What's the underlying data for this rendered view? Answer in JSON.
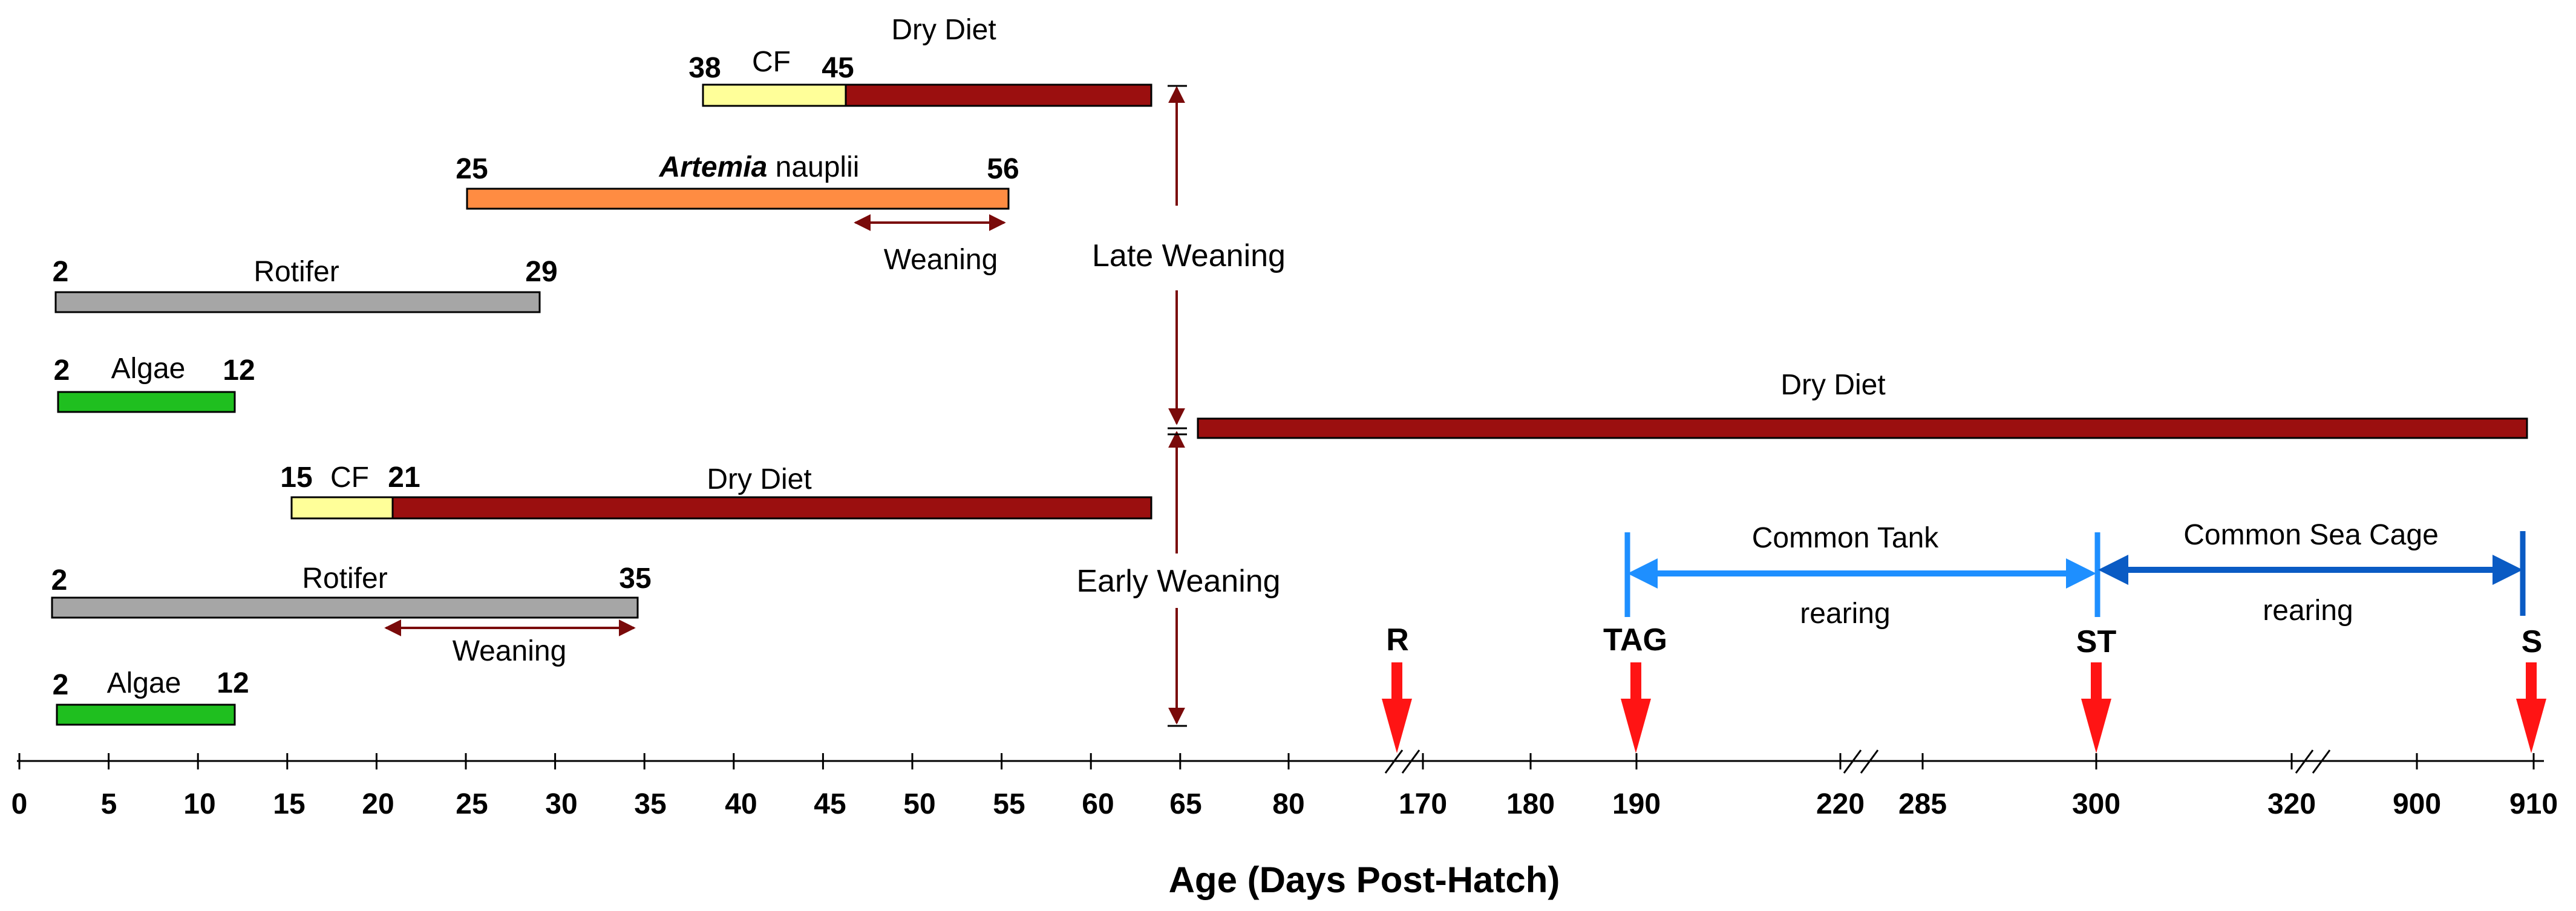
{
  "colors": {
    "algae": "#1fbf1f",
    "rotifer": "#a6a6a6",
    "cf": "#ffff99",
    "dry_diet": "#9b0f0f",
    "artemia": "#ff8c42",
    "weaning_arrow": "#7a0a0a",
    "common_tank": "#1e8fff",
    "common_sea_cage": "#0a5bc4",
    "event_marker": "#ff1414"
  },
  "late_weaning": {
    "label": "Late Weaning",
    "dry_diet": {
      "label": "Dry Diet"
    },
    "cf": {
      "label": "CF",
      "start_label": "38",
      "end_label": "45"
    },
    "artemia": {
      "label_italic": "Artemia",
      "label_rest": " nauplii",
      "start_label": "25",
      "end_label": "56"
    },
    "weaning": {
      "label": "Weaning"
    },
    "rotifer": {
      "label": "Rotifer",
      "start_label": "2",
      "end_label": "29"
    },
    "algae": {
      "label": "Algae",
      "start_label": "2",
      "end_label": "12"
    }
  },
  "early_weaning": {
    "label": "Early Weaning",
    "cf": {
      "label": "CF",
      "start_label": "15",
      "end_label": "21"
    },
    "dry_diet": {
      "label": "Dry Diet"
    },
    "rotifer": {
      "label": "Rotifer",
      "start_label": "2",
      "end_label": "35"
    },
    "weaning": {
      "label": "Weaning"
    },
    "algae": {
      "label": "Algae",
      "start_label": "2",
      "end_label": "12"
    }
  },
  "long_dry_diet": {
    "label": "Dry Diet"
  },
  "common_tank": {
    "line1": "Common Tank",
    "line2": "rearing"
  },
  "common_sea_cage": {
    "line1": "Common Sea Cage",
    "line2": "rearing"
  },
  "events": [
    {
      "label": "R"
    },
    {
      "label": "TAG"
    },
    {
      "label": "ST"
    },
    {
      "label": "S"
    }
  ],
  "axis": {
    "title": "Age (Days Post-Hatch)",
    "ticks": [
      "0",
      "5",
      "10",
      "15",
      "20",
      "25",
      "30",
      "35",
      "40",
      "45",
      "50",
      "55",
      "60",
      "65",
      "80",
      "170",
      "180",
      "190",
      "220",
      "285",
      "300",
      "320",
      "900",
      "910"
    ]
  }
}
